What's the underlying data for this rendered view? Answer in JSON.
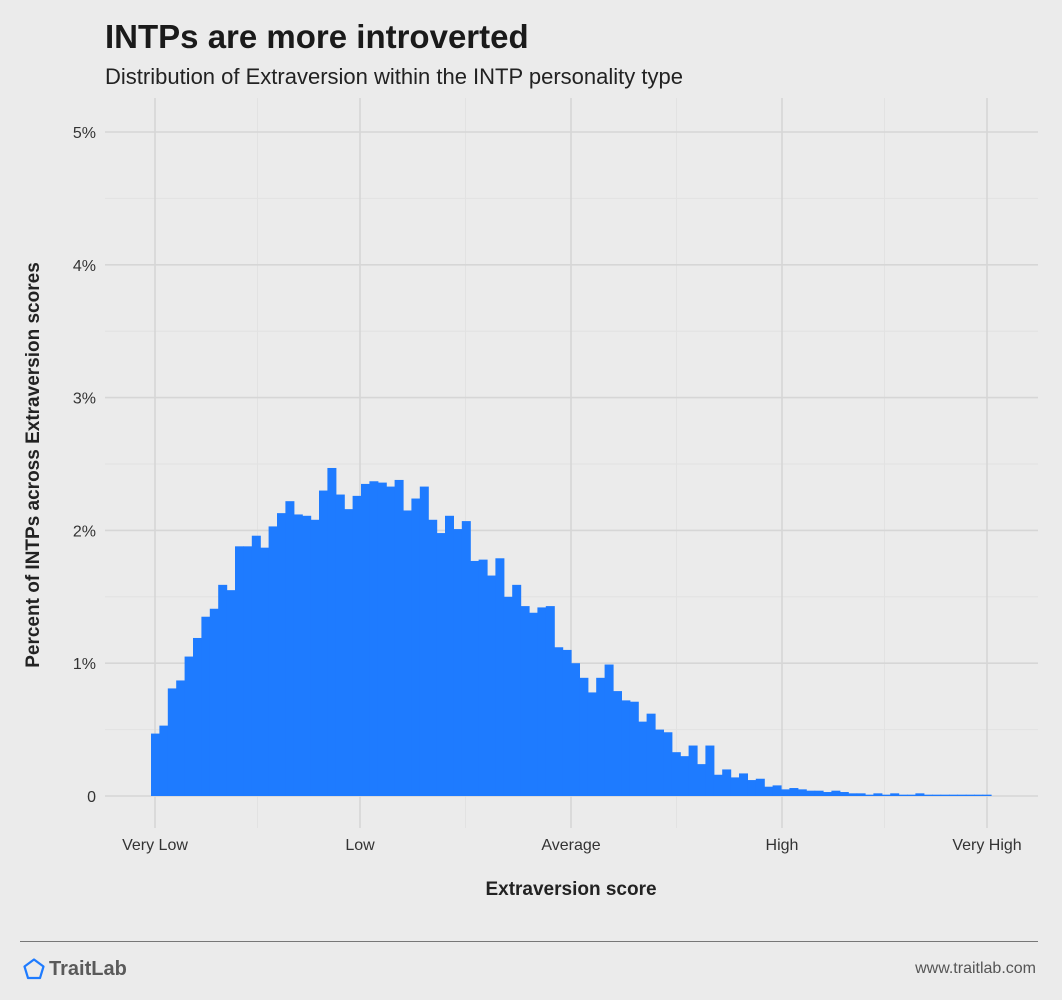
{
  "header": {
    "title": "INTPs are more introverted",
    "subtitle": "Distribution of Extraversion within the INTP personality type"
  },
  "footer": {
    "brand": "TraitLab",
    "brand_icon": "pentagon-icon",
    "url": "www.traitlab.com"
  },
  "colors": {
    "bar": "#1e7bff",
    "background": "#ebebeb",
    "grid_major": "#d6d6d6",
    "grid_minor": "#e2e2e2"
  },
  "chart_data": {
    "type": "bar",
    "title": "INTPs are more introverted",
    "subtitle": "Distribution of Extraversion within the INTP personality type",
    "xlabel": "Extraversion score",
    "ylabel": "Percent of INTPs across Extraversion scores",
    "x_tick_labels": [
      "Very Low",
      "Low",
      "Average",
      "High",
      "Very High"
    ],
    "y_ticks": [
      0,
      1,
      2,
      3,
      4,
      5
    ],
    "y_tick_labels": [
      "0",
      "1%",
      "2%",
      "3%",
      "4%",
      "5%"
    ],
    "ylim": [
      0,
      5.1
    ],
    "grid": true,
    "legend": "none",
    "series": [
      {
        "values": [
          0.47,
          0.53,
          0.81,
          0.87,
          1.05,
          1.19,
          1.35,
          1.41,
          1.59,
          1.55,
          1.88,
          1.88,
          1.96,
          1.87,
          2.03,
          2.13,
          2.22,
          2.12,
          2.11,
          2.08,
          2.3,
          2.47,
          2.27,
          2.16,
          2.26,
          2.35,
          2.37,
          2.36,
          2.33,
          2.38,
          2.15,
          2.24,
          2.33,
          2.08,
          1.98,
          2.11,
          2.01,
          2.07,
          1.77,
          1.78,
          1.66,
          1.79,
          1.5,
          1.59,
          1.43,
          1.38,
          1.42,
          1.43,
          1.12,
          1.1,
          1.0,
          0.89,
          0.78,
          0.89,
          0.99,
          0.79,
          0.72,
          0.71,
          0.56,
          0.62,
          0.5,
          0.48,
          0.33,
          0.3,
          0.38,
          0.24,
          0.38,
          0.16,
          0.2,
          0.14,
          0.17,
          0.12,
          0.13,
          0.07,
          0.08,
          0.05,
          0.06,
          0.05,
          0.04,
          0.04,
          0.03,
          0.04,
          0.03,
          0.02,
          0.02,
          0.01,
          0.02,
          0.01,
          0.02,
          0.01,
          0.01,
          0.02,
          0.01,
          0.01,
          0.01,
          0.01,
          0.01,
          0.01,
          0.01,
          0.01
        ]
      }
    ]
  }
}
